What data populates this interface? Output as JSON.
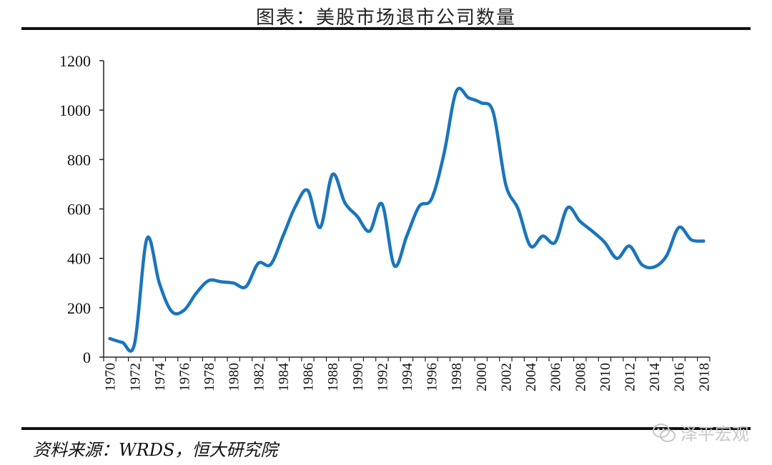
{
  "title": "图表：美股市场退市公司数量",
  "source": "资料来源：WRDS，恒大研究院",
  "watermark": "泽平宏观",
  "colors": {
    "line": "#1a75bc",
    "axis": "#222222",
    "rule": "#111111"
  },
  "chart_data": {
    "type": "line",
    "ylim": [
      0,
      1200
    ],
    "yticks": [
      0,
      200,
      400,
      600,
      800,
      1000,
      1200
    ],
    "xticks": [
      "1970",
      "1972",
      "1974",
      "1976",
      "1978",
      "1980",
      "1982",
      "1984",
      "1986",
      "1988",
      "1990",
      "1992",
      "1994",
      "1996",
      "1998",
      "2000",
      "2002",
      "2004",
      "2006",
      "2008",
      "2010",
      "2012",
      "2014",
      "2016",
      "2018"
    ],
    "grid": false,
    "series": [
      {
        "x": [
          1970,
          1971,
          1972,
          1973,
          1974,
          1975,
          1976,
          1977,
          1978,
          1979,
          1980,
          1981,
          1982,
          1983,
          1984,
          1985,
          1986,
          1987,
          1988,
          1989,
          1990,
          1991,
          1992,
          1993,
          1994,
          1995,
          1996,
          1997,
          1998,
          1999,
          2000,
          2001,
          2002,
          2003,
          2004,
          2005,
          2006,
          2007,
          2008,
          2009,
          2010,
          2011,
          2012,
          2013,
          2014,
          2015,
          2016,
          2017,
          2018
        ],
        "values": [
          75,
          60,
          55,
          480,
          300,
          185,
          190,
          260,
          310,
          305,
          300,
          285,
          380,
          375,
          490,
          610,
          675,
          525,
          740,
          625,
          570,
          510,
          620,
          370,
          490,
          610,
          640,
          820,
          1075,
          1050,
          1030,
          990,
          700,
          600,
          450,
          490,
          465,
          605,
          550,
          510,
          465,
          400,
          450,
          375,
          365,
          410,
          525,
          475,
          470
        ]
      }
    ]
  }
}
